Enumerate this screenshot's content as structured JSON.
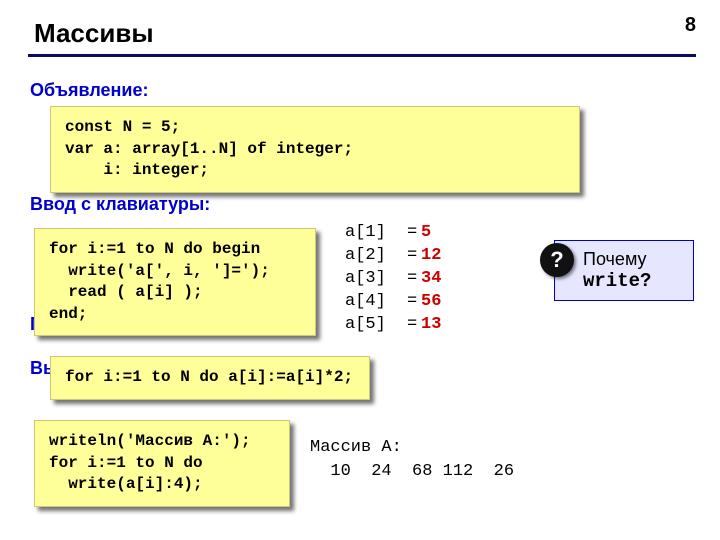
{
  "page_number": "8",
  "title": "Массивы",
  "sections": {
    "declare": "Объявление:",
    "input": "Ввод с клавиатуры:",
    "process": "По",
    "output_label": "Вы"
  },
  "code": {
    "declare": "const N = 5;\nvar a: array[1..N] of integer;\n    i: integer;",
    "input": "for i:=1 to N do begin\n  write('a[', i, ']=');\n  read ( a[i] );\nend;",
    "process": "for i:=1 to N do a[i]:=a[i]*2;",
    "output": "writeln('Массив A:');\nfor i:=1 to N do \n  write(a[i]:4);"
  },
  "array_values": [
    {
      "key": "a[1]",
      "val": "5"
    },
    {
      "key": "a[2]",
      "val": "12"
    },
    {
      "key": "a[3]",
      "val": "34"
    },
    {
      "key": "a[4]",
      "val": "56"
    },
    {
      "key": "a[5]",
      "val": "13"
    }
  ],
  "callout": {
    "line1": "Почему",
    "line2": "write?"
  },
  "qmark": "?",
  "output_text": "Массив A:\n  10  24  68 112  26",
  "colors": {
    "accent": "#0000cc",
    "rule": "#0a0a60",
    "codebg": "#ffff99",
    "valred": "#cc0000",
    "calloutbg": "#e6e6ff"
  }
}
